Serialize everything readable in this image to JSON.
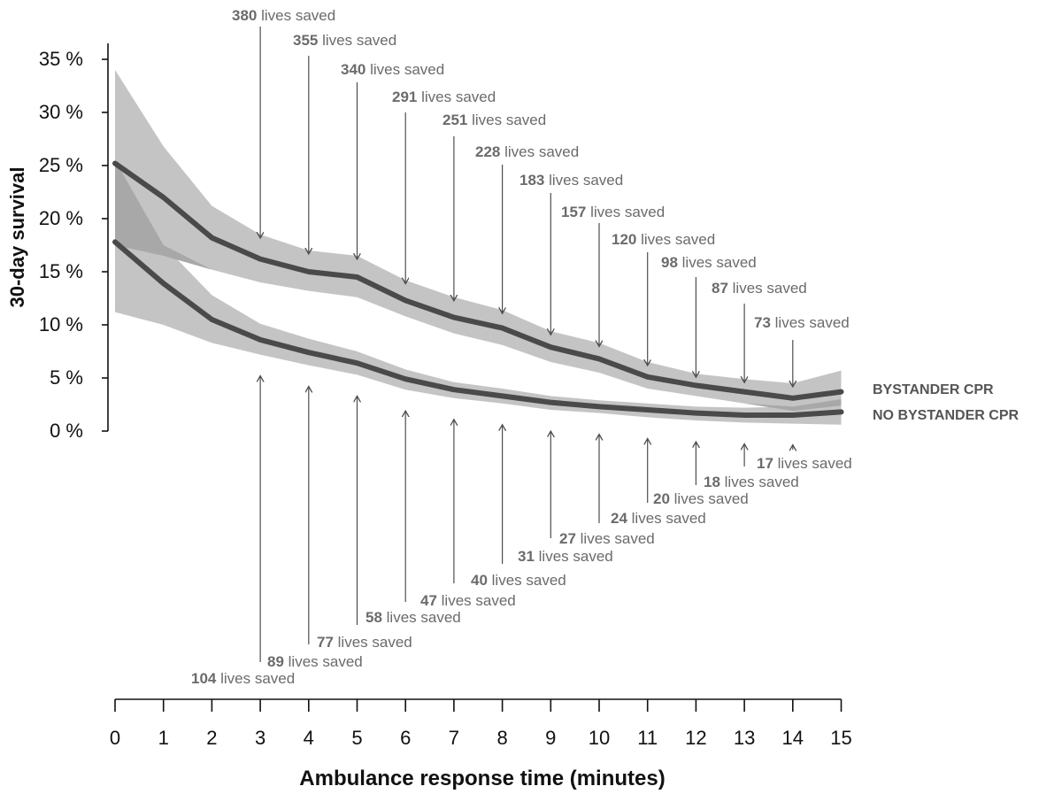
{
  "chart_data": {
    "type": "line",
    "title": "",
    "xlabel": "Ambulance response time (minutes)",
    "ylabel": "30-day survival",
    "xlim": [
      0,
      15
    ],
    "ylim": [
      0,
      35
    ],
    "x_ticks": [
      "0",
      "1",
      "2",
      "3",
      "4",
      "5",
      "6",
      "7",
      "8",
      "9",
      "10",
      "11",
      "12",
      "13",
      "14",
      "15"
    ],
    "y_ticks": [
      "0 %",
      "5 %",
      "10 %",
      "15 %",
      "20 %",
      "25 %",
      "30 %",
      "35 %"
    ],
    "grid": false,
    "colors": {
      "band": "#c4c4c4",
      "overlap": "#a8a8a8",
      "line": "#4a4a4a",
      "arrow": "#4d4d4d",
      "annotation": "#6b6b6b"
    },
    "x": [
      0,
      1,
      2,
      3,
      4,
      5,
      6,
      7,
      8,
      9,
      10,
      11,
      12,
      13,
      14,
      15
    ],
    "series": [
      {
        "name": "BYSTANDER CPR",
        "values": [
          25.2,
          22.0,
          18.2,
          16.2,
          15.0,
          14.5,
          12.3,
          10.7,
          9.7,
          7.9,
          6.8,
          5.1,
          4.3,
          3.7,
          3.1,
          3.7
        ],
        "lower": [
          17.5,
          16.5,
          15.2,
          14.0,
          13.2,
          12.6,
          10.8,
          9.2,
          8.1,
          6.5,
          5.5,
          4.0,
          3.3,
          2.6,
          1.9,
          2.4
        ],
        "upper": [
          34.0,
          26.8,
          21.2,
          18.5,
          17.0,
          16.5,
          14.2,
          12.6,
          11.4,
          9.4,
          8.3,
          6.5,
          5.4,
          4.9,
          4.5,
          5.7
        ]
      },
      {
        "name": "NO BYSTANDER CPR",
        "values": [
          17.8,
          13.9,
          10.5,
          8.6,
          7.4,
          6.4,
          4.9,
          3.9,
          3.3,
          2.7,
          2.3,
          2.0,
          1.7,
          1.5,
          1.5,
          1.8
        ],
        "lower": [
          11.2,
          10.0,
          8.3,
          7.2,
          6.2,
          5.3,
          3.9,
          3.1,
          2.6,
          2.0,
          1.7,
          1.3,
          1.0,
          0.8,
          0.7,
          0.6
        ],
        "upper": [
          25.5,
          17.5,
          12.8,
          10.1,
          8.7,
          7.5,
          5.8,
          4.6,
          4.0,
          3.3,
          2.9,
          2.6,
          2.3,
          2.2,
          2.3,
          3.0
        ]
      }
    ],
    "annotations_above": [
      {
        "x": 3,
        "value": "380",
        "text": " lives saved"
      },
      {
        "x": 4,
        "value": "355",
        "text": " lives saved"
      },
      {
        "x": 5,
        "value": "340",
        "text": " lives saved"
      },
      {
        "x": 6,
        "value": "291",
        "text": " lives saved"
      },
      {
        "x": 7,
        "value": "251",
        "text": " lives saved"
      },
      {
        "x": 8,
        "value": "228",
        "text": " lives saved"
      },
      {
        "x": 9,
        "value": "183",
        "text": " lives saved"
      },
      {
        "x": 10,
        "value": "157",
        "text": " lives saved"
      },
      {
        "x": 11,
        "value": "120",
        "text": " lives saved"
      },
      {
        "x": 12,
        "value": "98",
        "text": " lives saved"
      },
      {
        "x": 13,
        "value": "87",
        "text": " lives saved"
      },
      {
        "x": 14,
        "value": "73",
        "text": " lives saved"
      }
    ],
    "annotations_below": [
      {
        "x": 3,
        "value": "104",
        "text": " lives saved"
      },
      {
        "x": 4,
        "value": "89",
        "text": " lives saved"
      },
      {
        "x": 5,
        "value": "77",
        "text": " lives saved"
      },
      {
        "x": 6,
        "value": "58",
        "text": " lives saved"
      },
      {
        "x": 7,
        "value": "47",
        "text": " lives saved"
      },
      {
        "x": 8,
        "value": "40",
        "text": " lives saved"
      },
      {
        "x": 9,
        "value": "31",
        "text": " lives saved"
      },
      {
        "x": 10,
        "value": "27",
        "text": " lives saved"
      },
      {
        "x": 11,
        "value": "24",
        "text": " lives saved"
      },
      {
        "x": 12,
        "value": "20",
        "text": " lives saved"
      },
      {
        "x": 13,
        "value": "18",
        "text": " lives saved"
      },
      {
        "x": 14,
        "value": "17",
        "text": " lives saved"
      }
    ]
  }
}
